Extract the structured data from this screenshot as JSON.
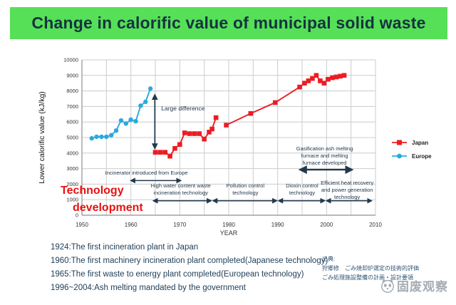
{
  "title": "Change in calorific value of municipal solid waste",
  "colors": {
    "banner_bg": "#55e058",
    "banner_fg": "#16323f",
    "japan": "#ec1c24",
    "europe": "#2ba9df",
    "annotation": "#22384e",
    "tech_red": "#ea1010",
    "grid": "#cccccc",
    "axis": "#8f8f8f",
    "tick": "#333333",
    "milestone": "#1e3d56",
    "source": "#2e5273",
    "watermark": "#a4acb4"
  },
  "chart_data": {
    "type": "line",
    "title": "Change in calorific value of municipal solid waste",
    "xlabel": "YEAR",
    "ylabel": "Lower calorific value (kJ/kg)",
    "xlim": [
      1950,
      2010
    ],
    "ylim": [
      0,
      10000
    ],
    "x_ticks": [
      1950,
      1960,
      1970,
      1980,
      1990,
      2000,
      2010
    ],
    "y_ticks": [
      0,
      1000,
      2000,
      3000,
      4000,
      5000,
      6000,
      7000,
      8000,
      9000,
      10000
    ],
    "grid": true,
    "grid_x_step_years": 5,
    "legend_position": "right-outside",
    "series": [
      {
        "name": "Japan",
        "color": "#ec1c24",
        "marker": "square",
        "segments": [
          [
            [
              1965,
              4050
            ],
            [
              1966,
              4050
            ],
            [
              1967,
              4050
            ],
            [
              1968,
              3800
            ],
            [
              1969,
              4300
            ],
            [
              1970,
              4550
            ],
            [
              1971,
              5300
            ],
            [
              1972,
              5250
            ],
            [
              1973,
              5250
            ],
            [
              1974,
              5250
            ],
            [
              1975,
              4900
            ],
            [
              1976,
              5350
            ],
            [
              1976.6,
              5550
            ],
            [
              1977.4,
              6280
            ]
          ],
          [
            [
              1979.5,
              5800
            ],
            [
              1984.5,
              6550
            ],
            [
              1989.5,
              7250
            ],
            [
              1994.5,
              8250
            ],
            [
              1995.5,
              8500
            ],
            [
              1996.3,
              8650
            ],
            [
              1997.1,
              8800
            ],
            [
              1997.9,
              9000
            ],
            [
              1998.7,
              8650
            ],
            [
              1999.5,
              8500
            ],
            [
              2000.3,
              8750
            ],
            [
              2001.2,
              8850
            ],
            [
              2002,
              8900
            ],
            [
              2002.8,
              8950
            ],
            [
              2003.6,
              9000
            ]
          ]
        ]
      },
      {
        "name": "Europe",
        "color": "#2ba9df",
        "marker": "circle",
        "segments": [
          [
            [
              1952,
              4950
            ],
            [
              1953,
              5050
            ],
            [
              1954,
              5050
            ],
            [
              1955,
              5050
            ],
            [
              1956,
              5150
            ],
            [
              1957,
              5450
            ],
            [
              1958,
              6100
            ],
            [
              1959,
              5900
            ],
            [
              1960,
              6150
            ],
            [
              1961,
              6050
            ],
            [
              1962,
              7050
            ],
            [
              1963,
              7300
            ],
            [
              1964,
              8150
            ]
          ]
        ]
      }
    ],
    "annotations": {
      "large_difference": {
        "label": "Large difference",
        "arrow_year": 1964.9,
        "top": 7750,
        "bottom": 4300,
        "label_year": 1966.2,
        "label_value": 6750
      },
      "periods": [
        {
          "lines": [
            "Incinerator introduced from Europe"
          ],
          "center_year": 1963.2,
          "text_value": 2620,
          "arrow_from": 1960,
          "arrow_to": 1970.2,
          "arrow_value": 2230,
          "thick": false
        },
        {
          "lines": [
            "High water content waste",
            "incineration technology"
          ],
          "center_year": 1970.2,
          "text_value": 1790,
          "arrow_from": 1964.6,
          "arrow_to": 1976.4,
          "arrow_value": 930,
          "thick": false
        },
        {
          "lines": [
            "Pollution control",
            "technology"
          ],
          "center_year": 1983.4,
          "text_value": 1790,
          "arrow_from": 1976.8,
          "arrow_to": 1989.8,
          "arrow_value": 930,
          "thick": false
        },
        {
          "lines": [
            "Dioxin control",
            "technology"
          ],
          "center_year": 1995.0,
          "text_value": 1790,
          "arrow_from": 1990.2,
          "arrow_to": 1999.6,
          "arrow_value": 930,
          "thick": false
        },
        {
          "lines": [
            "Efficient heat recovery",
            "and power generation",
            "technology"
          ],
          "center_year": 2004.2,
          "text_value": 1970,
          "arrow_from": 2000.0,
          "arrow_to": 2009.2,
          "arrow_value": 930,
          "thick": false
        },
        {
          "lines": [
            "Gasification ash melting",
            "furnace and melting",
            "furnace developed"
          ],
          "center_year": 1999.6,
          "text_value": 4170,
          "arrow_from": 1994.6,
          "arrow_to": 2005.2,
          "arrow_value": 2930,
          "thick": true
        }
      ],
      "tech_development": {
        "color": "#ea1010",
        "lines": [
          {
            "text": "Technology",
            "x": 85,
            "y": 206
          },
          {
            "text": "development",
            "x": 102,
            "y": 230
          }
        ]
      }
    }
  },
  "footer": {
    "milestones": [
      "1924:The first incineration plant in Japan",
      "1960:The first machinery incineration plant completed(Japanese technology)",
      "1965:The first waste to energy plant completed(European technology)",
      "1996~2004:Ash melting mandated by the government"
    ],
    "source": [
      "出典:",
      "狩郷修　ごみ焼却炉選定の技術的評価",
      "ごみ処理施設整備の計画・設計要領"
    ],
    "watermark": "固废观察"
  }
}
